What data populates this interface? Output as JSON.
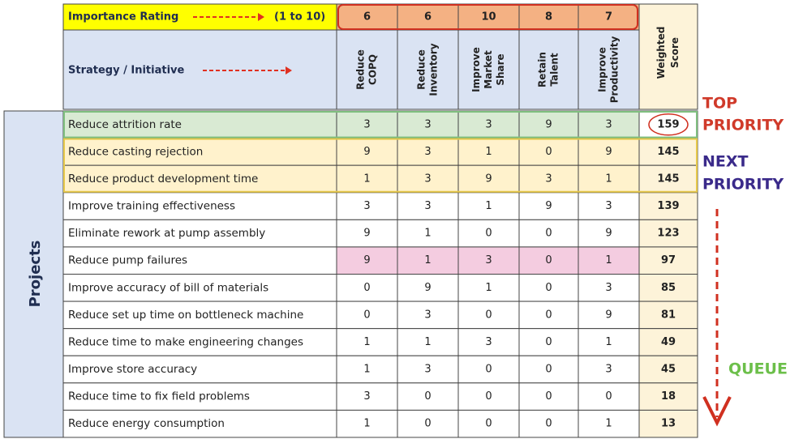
{
  "header": {
    "importance_label": "Importance Rating",
    "range": "(1 to 10)",
    "strategy_label": "Strategy / Initiative",
    "score_label": [
      "Weighted",
      "Score"
    ]
  },
  "criteria": [
    {
      "name": [
        "Reduce",
        "COPQ"
      ],
      "weight": 6
    },
    {
      "name": [
        "Reduce",
        "Inventory"
      ],
      "weight": 6
    },
    {
      "name": [
        "Improve",
        "Market",
        "Share"
      ],
      "weight": 10
    },
    {
      "name": [
        "Retain",
        "Talent"
      ],
      "weight": 8
    },
    {
      "name": [
        "Improve",
        "Productivity"
      ],
      "weight": 7
    }
  ],
  "side_label": "Projects",
  "rows": [
    {
      "project": "Reduce attrition rate",
      "scores": [
        3,
        3,
        3,
        9,
        3
      ],
      "weighted": 159
    },
    {
      "project": "Reduce casting rejection",
      "scores": [
        9,
        3,
        1,
        0,
        9
      ],
      "weighted": 145
    },
    {
      "project": "Reduce product development time",
      "scores": [
        1,
        3,
        9,
        3,
        1
      ],
      "weighted": 145
    },
    {
      "project": "Improve training effectiveness",
      "scores": [
        3,
        3,
        1,
        9,
        3
      ],
      "weighted": 139
    },
    {
      "project": "Eliminate rework at pump assembly",
      "scores": [
        9,
        1,
        0,
        0,
        9
      ],
      "weighted": 123
    },
    {
      "project": "Reduce pump failures",
      "scores": [
        9,
        1,
        3,
        0,
        1
      ],
      "weighted": 97
    },
    {
      "project": "Improve accuracy of bill of materials",
      "scores": [
        0,
        9,
        1,
        0,
        3
      ],
      "weighted": 85
    },
    {
      "project": "Reduce set up time on bottleneck machine",
      "scores": [
        0,
        3,
        0,
        0,
        9
      ],
      "weighted": 81
    },
    {
      "project": "Reduce time to make engineering changes",
      "scores": [
        1,
        1,
        3,
        0,
        1
      ],
      "weighted": 49
    },
    {
      "project": "Improve store accuracy",
      "scores": [
        1,
        3,
        0,
        0,
        3
      ],
      "weighted": 45
    },
    {
      "project": "Reduce time to fix field problems",
      "scores": [
        3,
        0,
        0,
        0,
        0
      ],
      "weighted": 18
    },
    {
      "project": "Reduce energy consumption",
      "scores": [
        1,
        0,
        0,
        0,
        1
      ],
      "weighted": 13
    }
  ],
  "annotations": {
    "top": [
      "TOP",
      "PRIORITY"
    ],
    "next": [
      "NEXT",
      "PRIORITY"
    ],
    "queue": "QUEUE"
  }
}
